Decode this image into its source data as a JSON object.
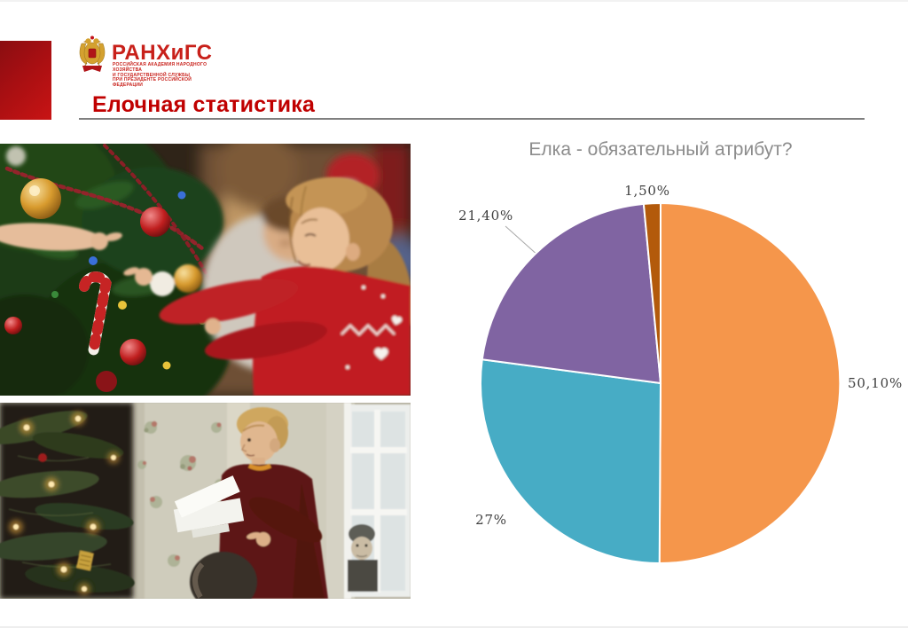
{
  "slide": {
    "title": "Елочная статистика",
    "title_color": "#C00000",
    "rule_color": "#7F7F7F",
    "accent_block_color": "#A80F12"
  },
  "logo": {
    "acronym": "РАНХиГС",
    "line1": "РОССИЙСКАЯ АКАДЕМИЯ НАРОДНОГО ХОЗЯЙСТВА",
    "line2": "И ГОСУДАРСТВЕННОЙ СЛУЖБЫ",
    "line3": "ПРИ ПРЕЗИДЕНТЕ РОССИЙСКОЙ ФЕДЕРАЦИИ",
    "brand_color": "#C8201A"
  },
  "chart_data": {
    "type": "pie",
    "title": "Елка - обязательный атрибут?",
    "title_color": "#8C8C8C",
    "label_color": "#3F3F3F",
    "legend": "none",
    "start_angle_deg": 0,
    "direction": "clockwise",
    "slices": [
      {
        "label": "50,10%",
        "value": 50.1,
        "color": "#F5964B"
      },
      {
        "label": "27%",
        "value": 27.0,
        "color": "#47ACC5"
      },
      {
        "label": "21,40%",
        "value": 21.4,
        "color": "#8064A2"
      },
      {
        "label": "1,50%",
        "value": 1.5,
        "color": "#B35A0B"
      }
    ]
  }
}
